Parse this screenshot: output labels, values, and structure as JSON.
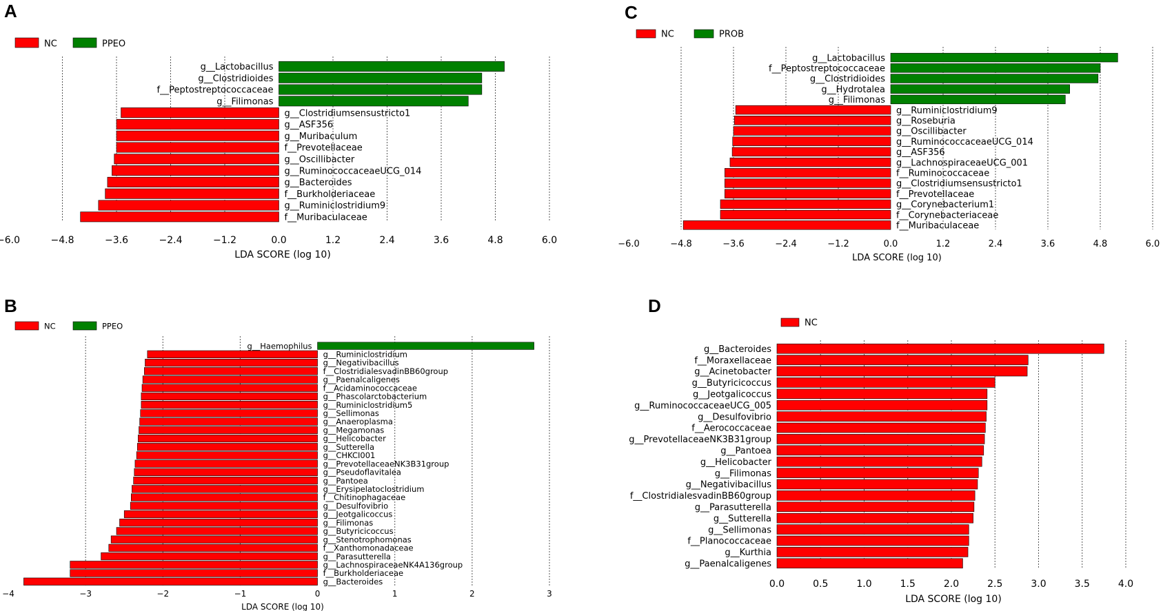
{
  "colors": {
    "nc": "#ff0000",
    "other": "#008000",
    "grid": "#555555",
    "bar_edge": "#000000"
  },
  "chart_data": [
    {
      "panel": "A",
      "type": "bar",
      "orientation": "horizontal",
      "xlabel": "LDA SCORE (log 10)",
      "xlim": [
        -6.0,
        6.0
      ],
      "xticks": [
        -6.0,
        -4.8,
        -3.6,
        -2.4,
        -1.2,
        0.0,
        1.2,
        2.4,
        3.6,
        4.8,
        6.0
      ],
      "tick_labels": [
        "−6.0",
        "−4.8",
        "−3.6",
        "−2.4",
        "−1.2",
        "0.0",
        "1.2",
        "2.4",
        "3.6",
        "4.8",
        "6.0"
      ],
      "legend": [
        {
          "label": "NC",
          "group": "nc"
        },
        {
          "label": "PPEO",
          "group": "other"
        }
      ],
      "series": [
        {
          "name": "g__Lactobacillus",
          "value": 5.0
        },
        {
          "name": "g__Clostridioides",
          "value": 4.5
        },
        {
          "name": "f__Peptostreptococcaceae",
          "value": 4.5
        },
        {
          "name": "g__Filimonas",
          "value": 4.2
        },
        {
          "name": "g__Clostridiumsensustricto1",
          "value": -3.5
        },
        {
          "name": "g__ASF356",
          "value": -3.6
        },
        {
          "name": "g__Muribaculum",
          "value": -3.6
        },
        {
          "name": "f__Prevotellaceae",
          "value": -3.6
        },
        {
          "name": "g__Oscillibacter",
          "value": -3.65
        },
        {
          "name": "g__RuminococcaceaeUCG_014",
          "value": -3.7
        },
        {
          "name": "g__Bacteroides",
          "value": -3.8
        },
        {
          "name": "f__Burkholderiaceae",
          "value": -3.85
        },
        {
          "name": "g__Ruminiclostridium9",
          "value": -4.0
        },
        {
          "name": "f__Muribaculaceae",
          "value": -4.4
        }
      ]
    },
    {
      "panel": "B",
      "type": "bar",
      "orientation": "horizontal",
      "xlabel": "LDA SCORE (log 10)",
      "xlim": [
        -4,
        3
      ],
      "xticks": [
        -4,
        -3,
        -2,
        -1,
        0,
        1,
        2,
        3
      ],
      "tick_labels": [
        "−4",
        "−3",
        "−2",
        "−1",
        "0",
        "1",
        "2",
        "3"
      ],
      "legend": [
        {
          "label": "NC",
          "group": "nc"
        },
        {
          "label": "PPEO",
          "group": "other"
        }
      ],
      "series": [
        {
          "name": "g__Haemophilus",
          "value": 2.8
        },
        {
          "name": "g__Ruminiclostridium",
          "value": -2.2
        },
        {
          "name": "g__Negativibacillus",
          "value": -2.23
        },
        {
          "name": "f__ClostridialesvadinBB60group",
          "value": -2.24
        },
        {
          "name": "g__Paenalcaligenes",
          "value": -2.26
        },
        {
          "name": "f__Acidaminococcaceae",
          "value": -2.27
        },
        {
          "name": "g__Phascolarctobacterium",
          "value": -2.28
        },
        {
          "name": "g__Ruminiclostridium5",
          "value": -2.28
        },
        {
          "name": "g__Sellimonas",
          "value": -2.29
        },
        {
          "name": "g__Anaeroplasma",
          "value": -2.3
        },
        {
          "name": "g__Megamonas",
          "value": -2.31
        },
        {
          "name": "g__Helicobacter",
          "value": -2.32
        },
        {
          "name": "g__Sutterella",
          "value": -2.33
        },
        {
          "name": "g__CHKCI001",
          "value": -2.34
        },
        {
          "name": "g__PrevotellaceaeNK3B31group",
          "value": -2.36
        },
        {
          "name": "g__Pseudoflavitalea",
          "value": -2.37
        },
        {
          "name": "g__Pantoea",
          "value": -2.38
        },
        {
          "name": "g__Erysipelatoclostridium",
          "value": -2.4
        },
        {
          "name": "f__Chitinophagaceae",
          "value": -2.41
        },
        {
          "name": "g__Desulfovibrio",
          "value": -2.42
        },
        {
          "name": "g__Jeotgalicoccus",
          "value": -2.5
        },
        {
          "name": "g__Filimonas",
          "value": -2.56
        },
        {
          "name": "g__Butyricicoccus",
          "value": -2.6
        },
        {
          "name": "g__Stenotrophomonas",
          "value": -2.67
        },
        {
          "name": "f__Xanthomonadaceae",
          "value": -2.7
        },
        {
          "name": "g__Parasutterella",
          "value": -2.8
        },
        {
          "name": "g__LachnospiraceaeNK4A136group",
          "value": -3.2
        },
        {
          "name": "f__Burkholderiaceae",
          "value": -3.2
        },
        {
          "name": "g__Bacteroides",
          "value": -3.8
        }
      ]
    },
    {
      "panel": "C",
      "type": "bar",
      "orientation": "horizontal",
      "xlabel": "LDA SCORE (log 10)",
      "xlim": [
        -6.0,
        6.0
      ],
      "xticks": [
        -6.0,
        -4.8,
        -3.6,
        -2.4,
        -1.2,
        0.0,
        1.2,
        2.4,
        3.6,
        4.8,
        6.0
      ],
      "tick_labels": [
        "−6.0",
        "−4.8",
        "−3.6",
        "−2.4",
        "−1.2",
        "0.0",
        "1.2",
        "2.4",
        "3.6",
        "4.8",
        "6.0"
      ],
      "legend": [
        {
          "label": "NC",
          "group": "nc"
        },
        {
          "label": "PROB",
          "group": "other"
        }
      ],
      "series": [
        {
          "name": "g__Lactobacillus",
          "value": 5.2
        },
        {
          "name": "f__Peptostreptococcaceae",
          "value": 4.8
        },
        {
          "name": "g__Clostridioides",
          "value": 4.75
        },
        {
          "name": "g__Hydrotalea",
          "value": 4.1
        },
        {
          "name": "g__Filimonas",
          "value": 4.0
        },
        {
          "name": "g__Ruminiclostridium9",
          "value": -3.55
        },
        {
          "name": "g__Roseburia",
          "value": -3.58
        },
        {
          "name": "g__Oscillibacter",
          "value": -3.6
        },
        {
          "name": "g__RuminococcaceaeUCG_014",
          "value": -3.62
        },
        {
          "name": "g__ASF356",
          "value": -3.63
        },
        {
          "name": "g__LachnospiraceaeUCG_001",
          "value": -3.68
        },
        {
          "name": "f__Ruminococcaceae",
          "value": -3.8
        },
        {
          "name": "g__Clostridiumsensustricto1",
          "value": -3.8
        },
        {
          "name": "f__Prevotellaceae",
          "value": -3.8
        },
        {
          "name": "g__Corynebacterium1",
          "value": -3.9
        },
        {
          "name": "f__Corynebacteriaceae",
          "value": -3.9
        },
        {
          "name": "f__Muribaculaceae",
          "value": -4.75
        }
      ]
    },
    {
      "panel": "D",
      "type": "bar",
      "orientation": "horizontal",
      "xlabel": "LDA SCORE (log 10)",
      "xlim": [
        0.0,
        4.0
      ],
      "xticks": [
        0.0,
        0.5,
        1.0,
        1.5,
        2.0,
        2.5,
        3.0,
        3.5,
        4.0
      ],
      "tick_labels": [
        "0.0",
        "0.5",
        "1.0",
        "1.5",
        "2.0",
        "2.5",
        "3.0",
        "3.5",
        "4.0"
      ],
      "legend": [
        {
          "label": "NC",
          "group": "nc"
        }
      ],
      "series": [
        {
          "name": "g__Bacteroides",
          "value": 3.75
        },
        {
          "name": "f__Moraxellaceae",
          "value": 2.88
        },
        {
          "name": "g__Acinetobacter",
          "value": 2.87
        },
        {
          "name": "g__Butyricicoccus",
          "value": 2.5
        },
        {
          "name": "g__Jeotgalicoccus",
          "value": 2.41
        },
        {
          "name": "g__RuminococcaceaeUCG_005",
          "value": 2.41
        },
        {
          "name": "g__Desulfovibrio",
          "value": 2.4
        },
        {
          "name": "f__Aerococcaceae",
          "value": 2.39
        },
        {
          "name": "g__PrevotellaceaeNK3B31group",
          "value": 2.38
        },
        {
          "name": "g__Pantoea",
          "value": 2.37
        },
        {
          "name": "g__Helicobacter",
          "value": 2.35
        },
        {
          "name": "g__Filimonas",
          "value": 2.31
        },
        {
          "name": "g__Negativibacillus",
          "value": 2.3
        },
        {
          "name": "f__ClostridialesvadinBB60group",
          "value": 2.27
        },
        {
          "name": "g__Parasutterella",
          "value": 2.26
        },
        {
          "name": "g__Sutterella",
          "value": 2.25
        },
        {
          "name": "g__Sellimonas",
          "value": 2.2
        },
        {
          "name": "f__Planococcaceae",
          "value": 2.2
        },
        {
          "name": "g__Kurthia",
          "value": 2.19
        },
        {
          "name": "g__Paenalcaligenes",
          "value": 2.13
        }
      ]
    }
  ]
}
